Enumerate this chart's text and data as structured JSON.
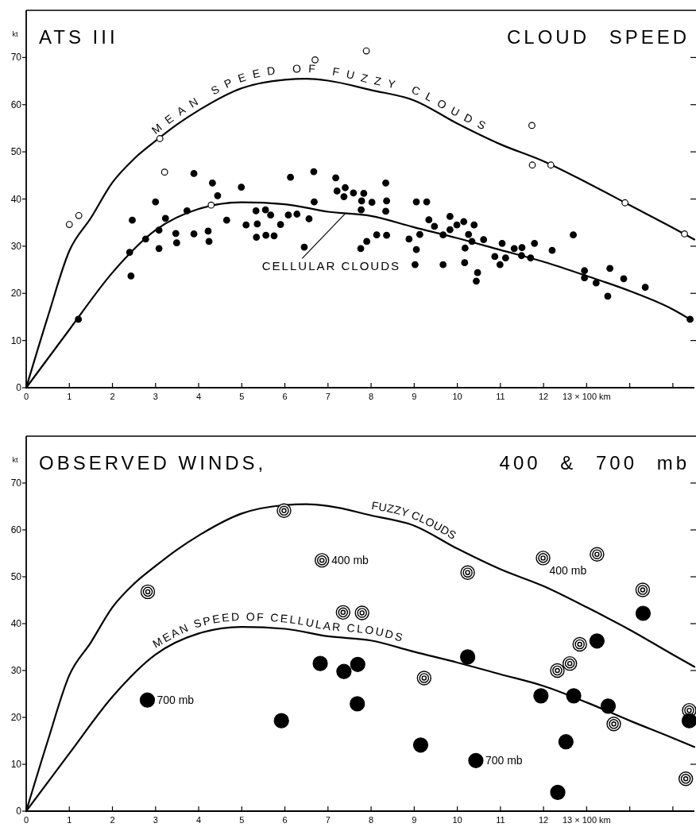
{
  "chart_data": [
    {
      "type": "scatter",
      "title": "ATS III",
      "subtitle": "CLOUD SPEED",
      "ylabel": "kt",
      "xlim": [
        0,
        15.5
      ],
      "xticks": [
        0,
        1,
        2,
        3,
        4,
        5,
        6,
        7,
        8,
        9,
        10,
        11,
        12,
        {
          "value": 13,
          "label": "13 × 100 km"
        },
        {
          "value": 14,
          "label": null
        },
        {
          "value": 15,
          "label": null
        }
      ],
      "ylim": [
        0,
        80
      ],
      "yticks": [
        0,
        10,
        20,
        30,
        40,
        50,
        60,
        70
      ],
      "series": [
        {
          "type": "line",
          "name": "MEAN SPEED OF FUZZY CLOUDS",
          "color": "#000000",
          "x": [
            0,
            0.5,
            1,
            1.5,
            2,
            2.5,
            3,
            3.5,
            4,
            5,
            6,
            6.5,
            7,
            8,
            9,
            10,
            11,
            12,
            13,
            14,
            15,
            15.5
          ],
          "values": [
            0,
            15,
            29,
            36,
            43.5,
            48.5,
            52.3,
            55.8,
            58.8,
            63.5,
            65.3,
            65.5,
            65.1,
            63.1,
            60.9,
            56,
            51.6,
            48,
            43.5,
            38.7,
            33.9,
            31.4
          ]
        },
        {
          "type": "line",
          "name": "CELLULAR CLOUDS",
          "color": "#000000",
          "x": [
            0,
            1,
            2,
            3,
            4,
            5,
            6,
            7,
            8,
            9,
            10,
            11,
            12,
            13,
            14,
            15,
            15.4
          ],
          "values": [
            0,
            12.3,
            24.4,
            33.4,
            37.9,
            39.3,
            38.9,
            37.3,
            36.4,
            34,
            31.7,
            29.2,
            26.7,
            23.7,
            20.5,
            16.6,
            14.5
          ]
        },
        {
          "color": "#ffffff",
          "marker": "circle",
          "x": [
            1.0,
            1.22,
            3.1,
            3.21,
            4.29,
            6.7,
            7.89,
            11.73,
            11.74,
            12.17,
            13.89,
            15.27
          ],
          "values": [
            34.6,
            36.5,
            52.8,
            45.7,
            38.7,
            69.5,
            71.4,
            55.6,
            47.2,
            47.2,
            39.2,
            32.6
          ]
        },
        {
          "color": "#000000",
          "marker": "circle",
          "x": [
            1.21,
            2.4,
            2.46,
            2.43,
            2.77,
            3.0,
            3.08,
            3.08,
            3.23,
            3.47,
            3.49,
            3.73,
            3.89,
            3.89,
            4.22,
            4.24,
            4.32,
            4.44,
            4.65,
            4.99,
            5.1,
            5.33,
            5.36,
            5.34,
            5.55,
            5.56,
            5.67,
            5.75,
            5.9,
            6.08,
            6.13,
            6.28,
            6.45,
            6.56,
            6.67,
            6.68,
            7.18,
            7.21,
            7.37,
            7.4,
            7.59,
            7.83,
            7.78,
            8.02,
            7.77,
            8.34,
            8.36,
            8.34,
            7.9,
            7.76,
            8.13,
            8.36,
            8.88,
            9.05,
            9.29,
            9.05,
            9.02,
            9.13,
            9.34,
            9.47,
            9.67,
            9.67,
            9.83,
            9.83,
            9.99,
            10.15,
            10.26,
            10.34,
            10.39,
            10.18,
            10.17,
            10.47,
            10.44,
            10.61,
            11.04,
            10.87,
            10.99,
            11.12,
            11.32,
            11.5,
            11.49,
            11.7,
            11.79,
            12.2,
            12.69,
            12.95,
            12.95,
            13.22,
            13.54,
            13.86,
            13.49,
            14.36,
            15.4
          ],
          "values": [
            14.5,
            28.7,
            35.5,
            23.7,
            31.5,
            39.4,
            33.4,
            29.5,
            35.9,
            32.7,
            30.7,
            37.5,
            45.4,
            32.6,
            33.2,
            31.0,
            43.4,
            40.7,
            35.5,
            42.5,
            34.5,
            37.5,
            34.7,
            31.9,
            37.7,
            32.3,
            36.6,
            32.2,
            34.6,
            36.6,
            44.6,
            36.8,
            29.8,
            35.8,
            45.8,
            39.4,
            44.5,
            41.7,
            40.5,
            42.4,
            41.3,
            41.2,
            39.6,
            39.3,
            37.7,
            43.4,
            39.6,
            37.4,
            31.0,
            29.5,
            32.4,
            32.3,
            31.5,
            39.4,
            39.4,
            29.3,
            26.1,
            32.5,
            35.6,
            34.2,
            32.4,
            26.1,
            36.3,
            33.5,
            34.5,
            35.2,
            32.5,
            31.0,
            34.5,
            29.6,
            26.5,
            24.4,
            22.6,
            31.4,
            30.6,
            27.8,
            26.1,
            27.5,
            29.5,
            29.7,
            28.0,
            27.5,
            30.6,
            29.1,
            32.4,
            24.8,
            23.3,
            22.2,
            25.3,
            23.1,
            19.4,
            21.3,
            14.5
          ]
        }
      ]
    },
    {
      "type": "scatter",
      "title": "OBSERVED WINDS,",
      "subtitle": "400 & 700 mb",
      "ylabel": "kt",
      "xlim": [
        0,
        15.5
      ],
      "xticks": [
        0,
        1,
        2,
        3,
        4,
        5,
        6,
        7,
        8,
        9,
        10,
        11,
        12,
        {
          "value": 13,
          "label": "13 × 100 km"
        },
        {
          "value": 14,
          "label": null
        },
        {
          "value": 15,
          "label": null
        }
      ],
      "ylim": [
        0,
        80
      ],
      "yticks": [
        0,
        10,
        20,
        30,
        40,
        50,
        60,
        70
      ],
      "series": [
        {
          "type": "line",
          "name": "FUZZY CLOUDS",
          "color": "#000000",
          "x": [
            0,
            0.5,
            1,
            1.5,
            2,
            2.5,
            3,
            3.5,
            4,
            5,
            6,
            6.5,
            7,
            8,
            9,
            10,
            11,
            12,
            13,
            14,
            15,
            15.5
          ],
          "values": [
            0,
            15,
            29,
            36,
            43.5,
            48.5,
            52.3,
            55.8,
            58.8,
            63.5,
            65.3,
            65.5,
            65.1,
            63.1,
            60.9,
            56,
            51.6,
            48,
            43.5,
            38.7,
            33.4,
            30.8
          ]
        },
        {
          "type": "line",
          "name": "MEAN SPEED OF CELLULAR CLOUDS",
          "color": "#000000",
          "x": [
            0,
            1,
            2,
            3,
            4,
            5,
            6,
            7,
            8,
            9,
            10,
            11,
            12,
            13,
            14,
            15,
            15.5
          ],
          "values": [
            0,
            12.3,
            24.4,
            33.4,
            37.9,
            39.3,
            38.9,
            37.3,
            36.4,
            34,
            31.7,
            29.2,
            26.7,
            23.2,
            19.3,
            15.6,
            13.7
          ]
        },
        {
          "color": "#ffffff",
          "marker": "circle",
          "x": [
            2.82,
            5.98,
            6.86,
            7.35,
            7.79,
            10.24,
            9.23,
            11.99,
            13.24,
            14.3,
            12.84,
            12.61,
            12.32,
            13.63,
            15.38,
            15.3
          ],
          "values": [
            46.8,
            64.1,
            53.5,
            42.4,
            42.3,
            50.9,
            28.4,
            54.0,
            54.8,
            47.2,
            35.6,
            31.5,
            30.0,
            18.6,
            21.5,
            6.9
          ]
        },
        {
          "color": "#000000",
          "marker": "circle",
          "x": [
            2.81,
            5.92,
            6.82,
            7.37,
            7.69,
            7.68,
            9.15,
            10.24,
            10.43,
            11.94,
            12.7,
            12.52,
            12.33,
            13.24,
            13.5,
            14.31,
            15.38
          ],
          "values": [
            23.7,
            19.3,
            31.5,
            29.8,
            31.3,
            22.9,
            14.1,
            32.9,
            10.8,
            24.6,
            24.6,
            14.8,
            4.0,
            36.3,
            22.4,
            42.2,
            19.3
          ]
        }
      ],
      "annotations": [
        {
          "text": "400 mb",
          "x": 6.86,
          "y": 53.5
        },
        {
          "text": "400 mb",
          "x": 11.99,
          "y": 54.0
        },
        {
          "text": "700 mb",
          "x": 2.81,
          "y": 23.7
        },
        {
          "text": "700 mb",
          "x": 10.43,
          "y": 10.8
        }
      ]
    }
  ]
}
